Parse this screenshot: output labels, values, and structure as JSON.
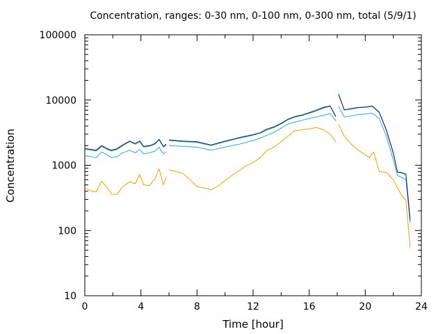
{
  "chart_data": {
    "type": "line",
    "title": "Concentration, ranges: 0-30 nm, 0-100 nm, 0-300 nm, total (5/9/1)",
    "xlabel": "Time [hour]",
    "ylabel": "Concentration",
    "xlim": [
      0,
      24
    ],
    "ylim": [
      10,
      100000
    ],
    "yscale": "log",
    "grid": false,
    "x_ticks": [
      {
        "value": 0,
        "label": "0"
      },
      {
        "value": 4,
        "label": "4"
      },
      {
        "value": 8,
        "label": "8"
      },
      {
        "value": 12,
        "label": "12"
      },
      {
        "value": 16,
        "label": "16"
      },
      {
        "value": 20,
        "label": "20"
      },
      {
        "value": 24,
        "label": "24"
      }
    ],
    "y_ticks": [
      {
        "value": 10,
        "label": "10"
      },
      {
        "value": 100,
        "label": "100"
      },
      {
        "value": 1000,
        "label": "1000"
      },
      {
        "value": 10000,
        "label": "10000"
      },
      {
        "value": 100000,
        "label": "100000"
      }
    ],
    "series": [
      {
        "color": "#e5a00e",
        "segments": [
          [
            [
              0,
              450
            ],
            [
              0.5,
              400
            ],
            [
              0.8,
              390
            ],
            [
              1.2,
              570
            ],
            [
              1.6,
              450
            ],
            [
              1.9,
              360
            ],
            [
              2.3,
              360
            ],
            [
              2.7,
              470
            ],
            [
              3.2,
              560
            ],
            [
              3.6,
              520
            ],
            [
              3.9,
              720
            ],
            [
              4.2,
              500
            ],
            [
              4.6,
              490
            ],
            [
              5.0,
              620
            ],
            [
              5.3,
              880
            ],
            [
              5.6,
              500
            ],
            [
              5.8,
              650
            ]
          ],
          [
            [
              6.0,
              850
            ],
            [
              6.5,
              800
            ],
            [
              7.0,
              750
            ],
            [
              7.5,
              600
            ],
            [
              8.0,
              470
            ],
            [
              8.5,
              450
            ],
            [
              9.0,
              420
            ],
            [
              9.5,
              480
            ],
            [
              10.0,
              580
            ],
            [
              10.5,
              700
            ],
            [
              11.0,
              830
            ],
            [
              11.5,
              980
            ],
            [
              12.0,
              1100
            ],
            [
              12.5,
              1300
            ],
            [
              13.0,
              1700
            ],
            [
              13.5,
              1900
            ],
            [
              14.0,
              2300
            ],
            [
              14.5,
              2800
            ],
            [
              15.0,
              3400
            ],
            [
              15.5,
              3500
            ],
            [
              16.0,
              3600
            ],
            [
              16.5,
              3800
            ],
            [
              17.0,
              3500
            ],
            [
              17.5,
              3000
            ],
            [
              17.9,
              2300
            ]
          ],
          [
            [
              18.1,
              4200
            ],
            [
              18.5,
              2800
            ],
            [
              19.0,
              2100
            ],
            [
              19.5,
              1700
            ],
            [
              20.0,
              1450
            ],
            [
              20.3,
              1300
            ],
            [
              20.6,
              1600
            ],
            [
              21.0,
              800
            ],
            [
              21.5,
              780
            ],
            [
              22.0,
              600
            ],
            [
              22.3,
              450
            ],
            [
              22.6,
              340
            ],
            [
              22.9,
              290
            ],
            [
              23.2,
              55
            ]
          ]
        ]
      },
      {
        "color": "#3a9fcf",
        "segments": [
          [
            [
              0,
              1400
            ],
            [
              0.5,
              1350
            ],
            [
              0.8,
              1300
            ],
            [
              1.2,
              1600
            ],
            [
              1.6,
              1450
            ],
            [
              1.9,
              1300
            ],
            [
              2.3,
              1350
            ],
            [
              2.7,
              1550
            ],
            [
              3.2,
              1700
            ],
            [
              3.6,
              1550
            ],
            [
              3.9,
              1750
            ],
            [
              4.2,
              1500
            ],
            [
              4.6,
              1550
            ],
            [
              5.0,
              1650
            ],
            [
              5.3,
              1900
            ],
            [
              5.6,
              1500
            ],
            [
              5.8,
              1600
            ]
          ],
          [
            [
              6.0,
              2000
            ],
            [
              7.0,
              1950
            ],
            [
              8.0,
              1900
            ],
            [
              9.0,
              1700
            ],
            [
              10.0,
              1900
            ],
            [
              11.0,
              2100
            ],
            [
              12.0,
              2400
            ],
            [
              12.5,
              2600
            ],
            [
              13.0,
              2900
            ],
            [
              13.5,
              3200
            ],
            [
              14.0,
              3700
            ],
            [
              14.5,
              4300
            ],
            [
              15.0,
              4600
            ],
            [
              15.5,
              4900
            ],
            [
              16.0,
              5200
            ],
            [
              16.5,
              5500
            ],
            [
              17.0,
              5800
            ],
            [
              17.5,
              6200
            ],
            [
              17.9,
              4800
            ]
          ],
          [
            [
              18.1,
              8000
            ],
            [
              18.5,
              5500
            ],
            [
              19.0,
              5700
            ],
            [
              19.5,
              6000
            ],
            [
              20.0,
              6100
            ],
            [
              20.5,
              6300
            ],
            [
              21.0,
              5200
            ],
            [
              21.5,
              2800
            ],
            [
              22.0,
              1200
            ],
            [
              22.3,
              700
            ],
            [
              22.6,
              650
            ],
            [
              22.9,
              600
            ],
            [
              23.2,
              130
            ]
          ]
        ]
      },
      {
        "color": "#17a589",
        "segments": [
          [
            [
              0,
              1750
            ],
            [
              0.5,
              1700
            ],
            [
              0.8,
              1650
            ],
            [
              1.2,
              1950
            ],
            [
              1.6,
              1750
            ],
            [
              1.9,
              1650
            ],
            [
              2.3,
              1750
            ],
            [
              2.7,
              2000
            ],
            [
              3.2,
              2300
            ],
            [
              3.6,
              2100
            ],
            [
              3.9,
              2300
            ],
            [
              4.2,
              1900
            ],
            [
              4.6,
              1950
            ],
            [
              5.0,
              2100
            ],
            [
              5.3,
              2450
            ],
            [
              5.6,
              1900
            ],
            [
              5.8,
              2050
            ]
          ],
          [
            [
              6.0,
              2400
            ],
            [
              7.0,
              2300
            ],
            [
              8.0,
              2250
            ],
            [
              9.0,
              2000
            ],
            [
              10.0,
              2300
            ],
            [
              11.0,
              2600
            ],
            [
              12.0,
              2900
            ],
            [
              12.5,
              3100
            ],
            [
              13.0,
              3500
            ],
            [
              13.5,
              3800
            ],
            [
              14.0,
              4300
            ],
            [
              14.5,
              5000
            ],
            [
              15.0,
              5500
            ],
            [
              15.5,
              5800
            ],
            [
              16.0,
              6300
            ],
            [
              16.5,
              6800
            ],
            [
              17.0,
              7500
            ],
            [
              17.5,
              8000
            ],
            [
              17.9,
              5500
            ]
          ],
          [
            [
              18.1,
              12500
            ],
            [
              18.5,
              7000
            ],
            [
              19.0,
              7300
            ],
            [
              19.5,
              7600
            ],
            [
              20.0,
              7700
            ],
            [
              20.5,
              8000
            ],
            [
              21.0,
              6400
            ],
            [
              21.5,
              3400
            ],
            [
              22.0,
              1500
            ],
            [
              22.3,
              780
            ],
            [
              22.6,
              760
            ],
            [
              22.9,
              720
            ],
            [
              23.2,
              140
            ]
          ]
        ]
      },
      {
        "color": "#2c1a6e",
        "segments": [
          [
            [
              0,
              1800
            ],
            [
              0.5,
              1750
            ],
            [
              0.8,
              1700
            ],
            [
              1.2,
              2000
            ],
            [
              1.6,
              1800
            ],
            [
              1.9,
              1700
            ],
            [
              2.3,
              1800
            ],
            [
              2.7,
              2050
            ],
            [
              3.2,
              2350
            ],
            [
              3.6,
              2150
            ],
            [
              3.9,
              2350
            ],
            [
              4.2,
              1950
            ],
            [
              4.6,
              2000
            ],
            [
              5.0,
              2150
            ],
            [
              5.3,
              2500
            ],
            [
              5.6,
              1950
            ],
            [
              5.8,
              2100
            ]
          ],
          [
            [
              6.0,
              2450
            ],
            [
              7.0,
              2350
            ],
            [
              8.0,
              2300
            ],
            [
              9.0,
              2050
            ],
            [
              10.0,
              2350
            ],
            [
              11.0,
              2650
            ],
            [
              12.0,
              2950
            ],
            [
              12.5,
              3150
            ],
            [
              13.0,
              3600
            ],
            [
              13.5,
              3900
            ],
            [
              14.0,
              4400
            ],
            [
              14.5,
              5100
            ],
            [
              15.0,
              5600
            ],
            [
              15.5,
              5900
            ],
            [
              16.0,
              6400
            ],
            [
              16.5,
              7000
            ],
            [
              17.0,
              7700
            ],
            [
              17.5,
              8100
            ],
            [
              17.9,
              5600
            ]
          ],
          [
            [
              18.1,
              12000
            ],
            [
              18.5,
              7100
            ],
            [
              19.0,
              7400
            ],
            [
              19.5,
              7700
            ],
            [
              20.0,
              7800
            ],
            [
              20.5,
              8100
            ],
            [
              21.0,
              6500
            ],
            [
              21.5,
              3500
            ],
            [
              22.0,
              1550
            ],
            [
              22.3,
              790
            ],
            [
              22.6,
              770
            ],
            [
              22.9,
              730
            ],
            [
              23.2,
              145
            ]
          ]
        ]
      }
    ]
  }
}
